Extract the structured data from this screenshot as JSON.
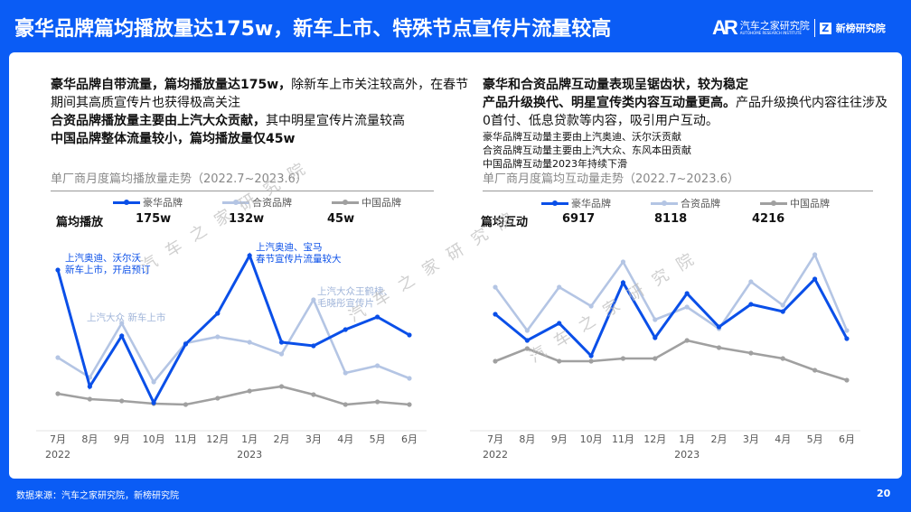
{
  "header": {
    "title": "豪华品牌篇均播放量达175w，新车上市、特殊节点宣传片流量较高",
    "logo_autohome": "汽车之家研究院",
    "logo_autohome_sub": "AUTOHOME RESEARCH INSTITUTE",
    "logo_xinbang": "新榜研究院"
  },
  "left": {
    "para": [
      {
        "bold": "豪华品牌自带流量，篇均播放量达175w，",
        "normal": "除新车上市关注较高外，在春节期间其高质宣传片也获得极高关注"
      },
      {
        "bold": "合资品牌播放量主要由上汽大众贡献，",
        "normal": "其中明星宣传片流量较高"
      },
      {
        "bold": "中国品牌整体流量较小，篇均播放量仅45w",
        "normal": ""
      }
    ],
    "annotations": [
      "上汽奥迪、沃尔沃",
      "新车上市，开启预订",
      "上汽奥迪、宝马",
      "春节宣传片流量较大",
      "上汽大众 新车上市",
      "上汽大众王鹤棣、",
      "毛晓彤宣传片"
    ]
  },
  "right": {
    "line1": "豪华和合资品牌互动量表现呈锯齿状，较为稳定",
    "line2_bold": "产品升级换代、明星宣传类内容互动量更高。",
    "line2_normal": "产品升级换代内容往往涉及0首付、低息贷款等内容，吸引用户互动。",
    "notes": [
      "豪华品牌互动量主要由上汽奥迪、沃尔沃贡献",
      "合资品牌互动量主要由上汽大众、东风本田贡献",
      "中国品牌互动量2023年持续下滑"
    ]
  },
  "watermark": "汽车之家研究院",
  "footer": {
    "source": "数据来源：汽车之家研究院，新榜研究院",
    "page": "20"
  },
  "colors": {
    "luxury": "#0a4fe8",
    "joint": "#b4c5e4",
    "chinese": "#a0a0a0"
  },
  "chart_data": [
    {
      "type": "line",
      "title": "单厂商月度篇均播放量走势（2022.7~2023.6）",
      "kpi_label": "篇均播放",
      "categories": [
        "7月",
        "8月",
        "9月",
        "10月",
        "11月",
        "12月",
        "1月",
        "2月",
        "3月",
        "4月",
        "5月",
        "6月"
      ],
      "year_labels": [
        "2022",
        "2023"
      ],
      "series": [
        {
          "name": "豪华品牌",
          "kpi": "175w",
          "values": [
            168,
            39,
            95,
            21,
            86,
            120,
            184,
            88,
            84,
            102,
            116,
            96
          ]
        },
        {
          "name": "合资品牌",
          "kpi": "132w",
          "values": [
            71,
            49,
            109,
            44,
            87,
            94,
            88,
            75,
            135,
            54,
            62,
            48
          ]
        },
        {
          "name": "中国品牌",
          "kpi": "45w",
          "values": [
            31,
            25,
            23,
            20,
            19,
            26,
            34,
            39,
            30,
            19,
            22,
            19
          ]
        }
      ],
      "ylim": [
        0,
        200
      ],
      "units": "relative (no y-axis shown)",
      "legend": "top"
    },
    {
      "type": "line",
      "title": "单厂商月度篇均互动量走势（2022.7~2023.6）",
      "kpi_label": "篇均互动",
      "categories": [
        "7月",
        "8月",
        "9月",
        "10月",
        "11月",
        "12月",
        "1月",
        "2月",
        "3月",
        "4月",
        "5月",
        "6月"
      ],
      "year_labels": [
        "2022",
        "2023"
      ],
      "series": [
        {
          "name": "豪华品牌",
          "kpi": "6917",
          "values": [
            119,
            90,
            109,
            73,
            154,
            93,
            142,
            105,
            130,
            122,
            158,
            92
          ]
        },
        {
          "name": "合资品牌",
          "kpi": "8118",
          "values": [
            149,
            101,
            149,
            128,
            177,
            113,
            127,
            103,
            155,
            129,
            185,
            101
          ]
        },
        {
          "name": "中国品牌",
          "kpi": "4216",
          "values": [
            67,
            81,
            67,
            67,
            70,
            70,
            90,
            82,
            76,
            70,
            57,
            46
          ]
        }
      ],
      "ylim": [
        0,
        200
      ],
      "units": "relative (no y-axis shown)",
      "legend": "top"
    }
  ]
}
